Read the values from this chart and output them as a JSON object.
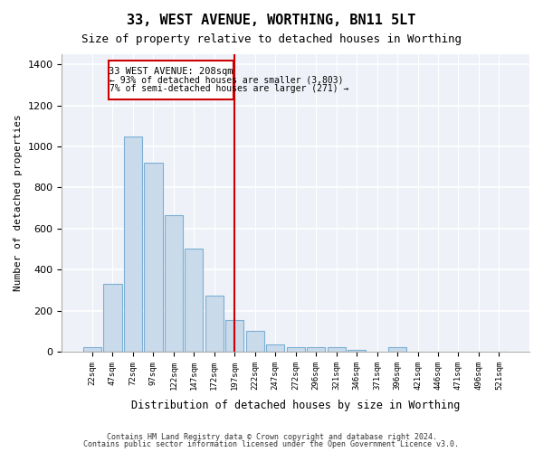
{
  "title": "33, WEST AVENUE, WORTHING, BN11 5LT",
  "subtitle": "Size of property relative to detached houses in Worthing",
  "xlabel": "Distribution of detached houses by size in Worthing",
  "ylabel": "Number of detached properties",
  "bar_labels": [
    "22sqm",
    "47sqm",
    "72sqm",
    "97sqm",
    "122sqm",
    "147sqm",
    "172sqm",
    "197sqm",
    "222sqm",
    "247sqm",
    "272sqm",
    "296sqm",
    "321sqm",
    "346sqm",
    "371sqm",
    "396sqm",
    "421sqm",
    "446sqm",
    "471sqm",
    "496sqm",
    "521sqm"
  ],
  "bar_values": [
    20,
    330,
    1050,
    920,
    665,
    500,
    275,
    155,
    100,
    35,
    20,
    20,
    20,
    10,
    0,
    20,
    0,
    0,
    0,
    0,
    0
  ],
  "bar_color": "#c9daea",
  "bar_edge_color": "#7bafd4",
  "property_line_x": 208,
  "property_line_label": "33 WEST AVENUE: 208sqm",
  "annotation_line1": "← 93% of detached houses are smaller (3,803)",
  "annotation_line2": "7% of semi-detached houses are larger (271) →",
  "vline_color": "#cc0000",
  "box_edge_color": "#cc0000",
  "ylim": [
    0,
    1450
  ],
  "yticks": [
    0,
    200,
    400,
    600,
    800,
    1000,
    1200,
    1400
  ],
  "bg_color": "#eef2f8",
  "grid_color": "#ffffff",
  "footnote1": "Contains HM Land Registry data © Crown copyright and database right 2024.",
  "footnote2": "Contains public sector information licensed under the Open Government Licence v3.0."
}
